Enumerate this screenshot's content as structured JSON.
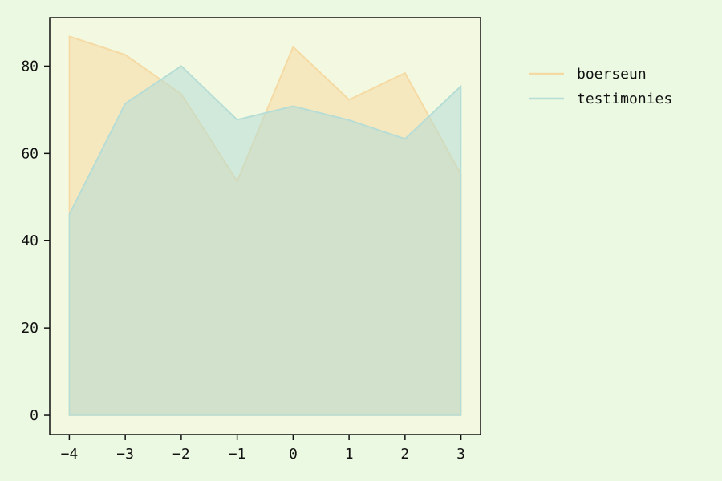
{
  "chart_data": {
    "type": "area",
    "x": [
      -4,
      -3,
      -2,
      -1,
      0,
      1,
      2,
      3
    ],
    "series": [
      {
        "name": "boerseun",
        "values": [
          86.8,
          82.6,
          73.6,
          53.6,
          84.4,
          72.3,
          78.4,
          55.2
        ],
        "color": "#f5d9a3"
      },
      {
        "name": "testimonies",
        "values": [
          46.0,
          71.4,
          80.0,
          67.7,
          70.8,
          67.6,
          63.3,
          75.4
        ],
        "color": "#b5ddd6"
      }
    ],
    "xticks": [
      "−4",
      "−3",
      "−2",
      "−1",
      "0",
      "1",
      "2",
      "3"
    ],
    "yticks": [
      "0",
      "20",
      "40",
      "60",
      "80"
    ],
    "ytick_values": [
      0,
      20,
      40,
      60,
      80
    ],
    "xlim": [
      -4.35,
      3.35
    ],
    "ylim": [
      -4.4,
      91.1
    ],
    "title": "",
    "xlabel": "",
    "ylabel": "",
    "grid": false,
    "legend_position": "outside-right",
    "plot_background": "#f3f9e1",
    "page_background": "#ecf9e2"
  }
}
